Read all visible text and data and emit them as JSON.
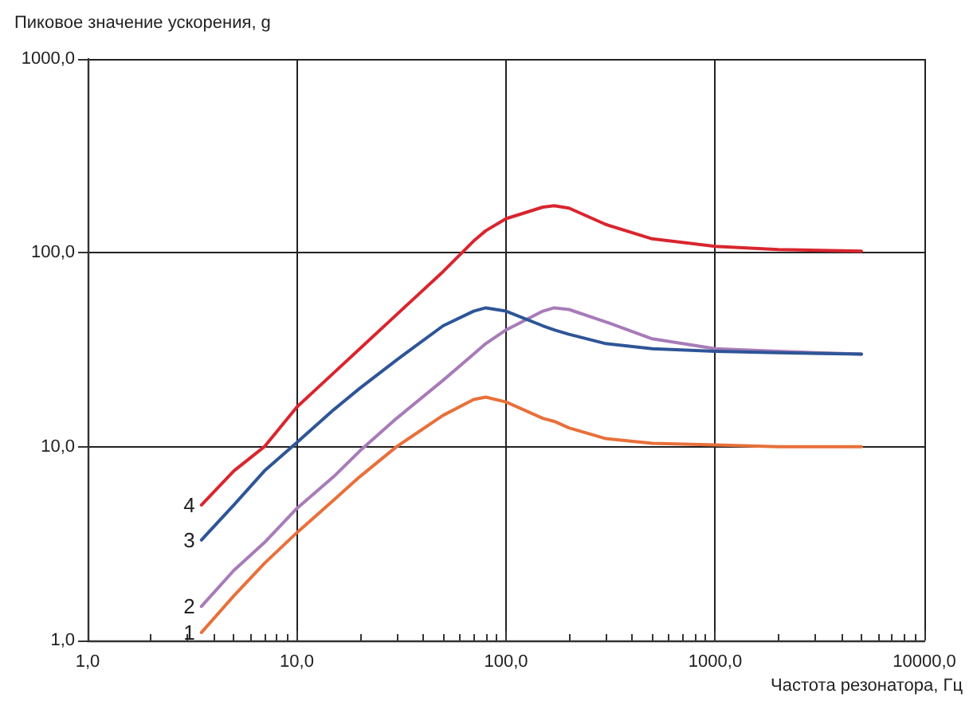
{
  "chart_data": {
    "type": "line",
    "ylabel": "Пиковое значение ускорения, g",
    "xlabel": "Частота резонатора, Гц",
    "log": "xy",
    "grid": true,
    "legend": false,
    "marker": "none",
    "line_style": "solid",
    "xlim": [
      1,
      10000
    ],
    "ylim": [
      1,
      1000
    ],
    "xticks": [
      {
        "value": 1,
        "label": "1,0"
      },
      {
        "value": 10,
        "label": "10,0"
      },
      {
        "value": 100,
        "label": "100,0"
      },
      {
        "value": 1000,
        "label": "1000,0"
      },
      {
        "value": 10000,
        "label": "10000,0"
      }
    ],
    "yticks": [
      {
        "value": 1,
        "label": "1,0"
      },
      {
        "value": 10,
        "label": "10,0"
      },
      {
        "value": 100,
        "label": "100,0"
      },
      {
        "value": 1000,
        "label": "1000,0"
      }
    ],
    "x": [
      3.5,
      5,
      7,
      10,
      15,
      20,
      30,
      50,
      70,
      80,
      100,
      150,
      170,
      200,
      300,
      500,
      1000,
      2000,
      5000
    ],
    "series": [
      {
        "name": "1",
        "color": "#e8703a",
        "values": [
          1.1,
          1.7,
          2.5,
          3.6,
          5.3,
          7,
          10,
          14.5,
          17.5,
          18,
          17,
          14,
          13.5,
          12.5,
          11,
          10.4,
          10.2,
          10,
          10
        ]
      },
      {
        "name": "2",
        "color": "#a77bb8",
        "values": [
          1.5,
          2.3,
          3.2,
          4.8,
          7,
          9.5,
          14,
          22,
          30,
          34,
          40,
          50,
          52,
          51,
          44,
          36,
          32,
          31,
          30
        ]
      },
      {
        "name": "3",
        "color": "#2e5597",
        "values": [
          3.3,
          5,
          7.5,
          10.5,
          15.5,
          20,
          28,
          42,
          50,
          52,
          50,
          42,
          40,
          38,
          34,
          32,
          31,
          30.5,
          30
        ]
      },
      {
        "name": "4",
        "color": "#d9252e",
        "values": [
          5,
          7.5,
          10,
          16,
          24,
          32,
          48,
          80,
          115,
          130,
          150,
          172,
          175,
          170,
          140,
          118,
          108,
          104,
          102
        ]
      }
    ]
  }
}
